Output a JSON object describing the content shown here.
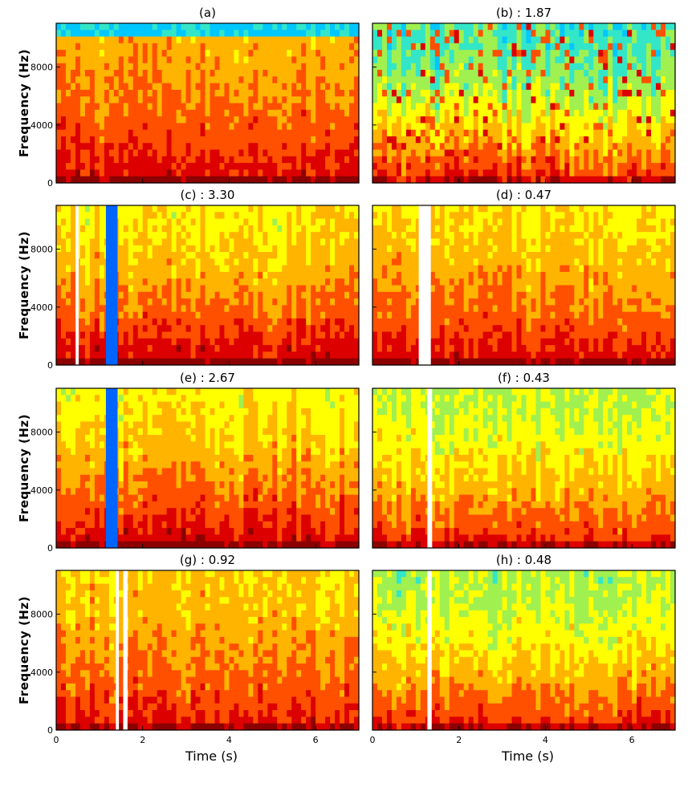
{
  "figure": {
    "ylabel": "Frequency (Hz)",
    "xlabel": "Time (s)",
    "y_ticks": [
      0,
      4000,
      8000
    ],
    "x_ticks": [
      0,
      2,
      4,
      6
    ],
    "colormap": [
      "#0000c8",
      "#0064ff",
      "#00c8ff",
      "#33e6c8",
      "#a0f050",
      "#ffff00",
      "#ffb400",
      "#ff5000",
      "#dc0000",
      "#8c0000"
    ]
  },
  "chart_data": [
    {
      "id": "a",
      "title": "(a)",
      "type": "heatmap",
      "xlim": [
        0,
        7
      ],
      "ylim": [
        0,
        11025
      ],
      "description_level": "mostly orange spectrogram with blue top band"
    },
    {
      "id": "b",
      "title": "(b) : 1.87",
      "type": "heatmap",
      "xlim": [
        0,
        7
      ],
      "ylim": [
        0,
        11025
      ]
    },
    {
      "id": "c",
      "title": "(c) : 3.30",
      "type": "heatmap",
      "xlim": [
        0,
        7
      ],
      "ylim": [
        0,
        11025
      ]
    },
    {
      "id": "d",
      "title": "(d) : 0.47",
      "type": "heatmap",
      "xlim": [
        0,
        7
      ],
      "ylim": [
        0,
        11025
      ]
    },
    {
      "id": "e",
      "title": "(e) : 2.67",
      "type": "heatmap",
      "xlim": [
        0,
        7
      ],
      "ylim": [
        0,
        11025
      ]
    },
    {
      "id": "f",
      "title": "(f) : 0.43",
      "type": "heatmap",
      "xlim": [
        0,
        7
      ],
      "ylim": [
        0,
        11025
      ]
    },
    {
      "id": "g",
      "title": "(g) : 0.92",
      "type": "heatmap",
      "xlim": [
        0,
        7
      ],
      "ylim": [
        0,
        11025
      ]
    },
    {
      "id": "h",
      "title": "(h) : 0.48",
      "type": "heatmap",
      "xlim": [
        0,
        7
      ],
      "ylim": [
        0,
        11025
      ]
    }
  ]
}
